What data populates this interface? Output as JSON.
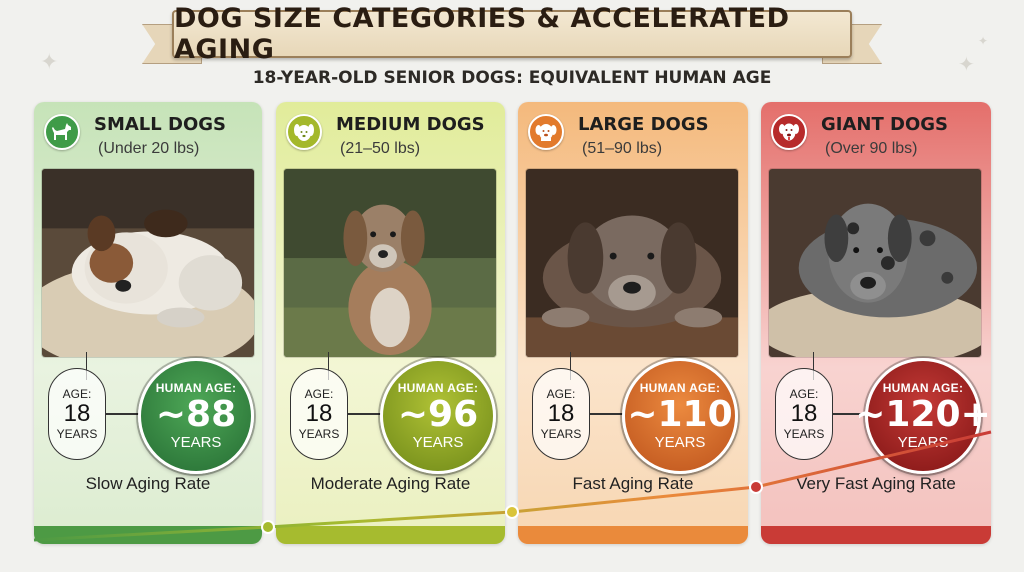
{
  "header": {
    "title": "DOG SIZE CATEGORIES & ACCELERATED AGING",
    "subtitle": "18-YEAR-OLD SENIOR DOGS: EQUIVALENT HUMAN AGE"
  },
  "categories": [
    {
      "title": "SMALL DOGS",
      "range": "(Under 20 lbs)",
      "age_label": "AGE:",
      "age_value": "18",
      "age_unit": "YEARS",
      "human_label": "HUMAN AGE:",
      "human_value": "~88",
      "human_unit": "YEARS",
      "rate": "Slow Aging Rate",
      "color": "#3f9b48",
      "icon": "small-dog-icon"
    },
    {
      "title": "MEDIUM DOGS",
      "range": "(21–50 lbs)",
      "age_label": "AGE:",
      "age_value": "18",
      "age_unit": "YEARS",
      "human_label": "HUMAN AGE:",
      "human_value": "~96",
      "human_unit": "YEARS",
      "rate": "Moderate Aging Rate",
      "color": "#a4b82b",
      "icon": "medium-dog-icon"
    },
    {
      "title": "LARGE DOGS",
      "range": "(51–90 lbs)",
      "age_label": "AGE:",
      "age_value": "18",
      "age_unit": "YEARS",
      "human_label": "HUMAN AGE:",
      "human_value": "~110",
      "human_unit": "YEARS",
      "rate": "Fast Aging Rate",
      "color": "#e27a2c",
      "icon": "large-dog-icon"
    },
    {
      "title": "GIANT DOGS",
      "range": "(Over 90 lbs)",
      "age_label": "AGE:",
      "age_value": "18",
      "age_unit": "YEARS",
      "human_label": "HUMAN AGE:",
      "human_value": "~120+",
      "human_unit": "YEARS",
      "rate": "Very Fast Aging Rate",
      "color": "#b72b2b",
      "icon": "giant-dog-icon"
    }
  ]
}
